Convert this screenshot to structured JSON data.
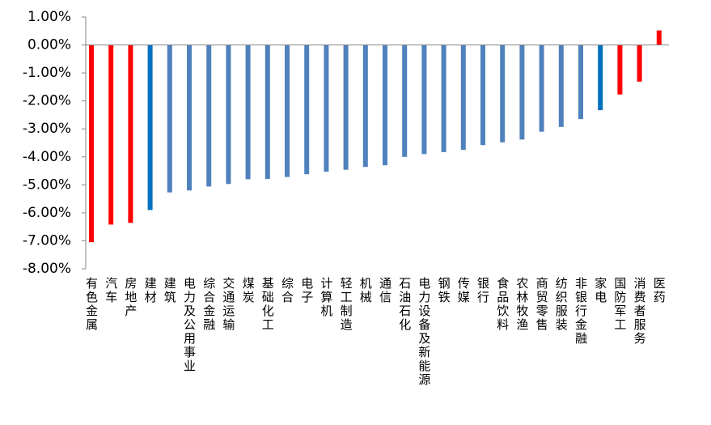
{
  "chart_data": {
    "type": "bar",
    "categories": [
      "有色金属",
      "汽车",
      "房地产",
      "建材",
      "建筑",
      "电力及公用事业",
      "综合金融",
      "交通运输",
      "煤炭",
      "基础化工",
      "综合",
      "电子",
      "计算机",
      "轻工制造",
      "机械",
      "通信",
      "石油石化",
      "电力设备及新能源",
      "钢铁",
      "传媒",
      "银行",
      "食品饮料",
      "农林牧渔",
      "商贸零售",
      "纺织服装",
      "非银行金融",
      "家电",
      "国防军工",
      "消费者服务",
      "医药"
    ],
    "values": [
      -7.05,
      -6.42,
      -6.36,
      -5.9,
      -5.27,
      -5.2,
      -5.06,
      -4.97,
      -4.8,
      -4.79,
      -4.72,
      -4.62,
      -4.53,
      -4.46,
      -4.36,
      -4.3,
      -4.0,
      -3.9,
      -3.83,
      -3.75,
      -3.58,
      -3.48,
      -3.38,
      -3.1,
      -2.93,
      -2.65,
      -2.33,
      -1.77,
      -1.31,
      0.52
    ],
    "colors": [
      "#ff0000",
      "#ff0000",
      "#ff0000",
      "#0070c0",
      "#4f81bd",
      "#4f81bd",
      "#4f81bd",
      "#4f81bd",
      "#4f81bd",
      "#4f81bd",
      "#4f81bd",
      "#4f81bd",
      "#4f81bd",
      "#4f81bd",
      "#4f81bd",
      "#4f81bd",
      "#4f81bd",
      "#4f81bd",
      "#4f81bd",
      "#4f81bd",
      "#4f81bd",
      "#4f81bd",
      "#4f81bd",
      "#4f81bd",
      "#4f81bd",
      "#4f81bd",
      "#0070c0",
      "#ff0000",
      "#ff0000",
      "#ff0000"
    ],
    "ylim": [
      -8,
      1
    ],
    "yticks": [
      {
        "value": -8,
        "label": "-8.00%"
      },
      {
        "value": -7,
        "label": "-7.00%"
      },
      {
        "value": -6,
        "label": "-6.00%"
      },
      {
        "value": -5,
        "label": "-5.00%"
      },
      {
        "value": -4,
        "label": "-4.00%"
      },
      {
        "value": -3,
        "label": "-3.00%"
      },
      {
        "value": -2,
        "label": "-2.00%"
      },
      {
        "value": -1,
        "label": "-1.00%"
      },
      {
        "value": 0,
        "label": "0.00%"
      },
      {
        "value": 1,
        "label": "1.00%"
      }
    ],
    "grid": false
  }
}
